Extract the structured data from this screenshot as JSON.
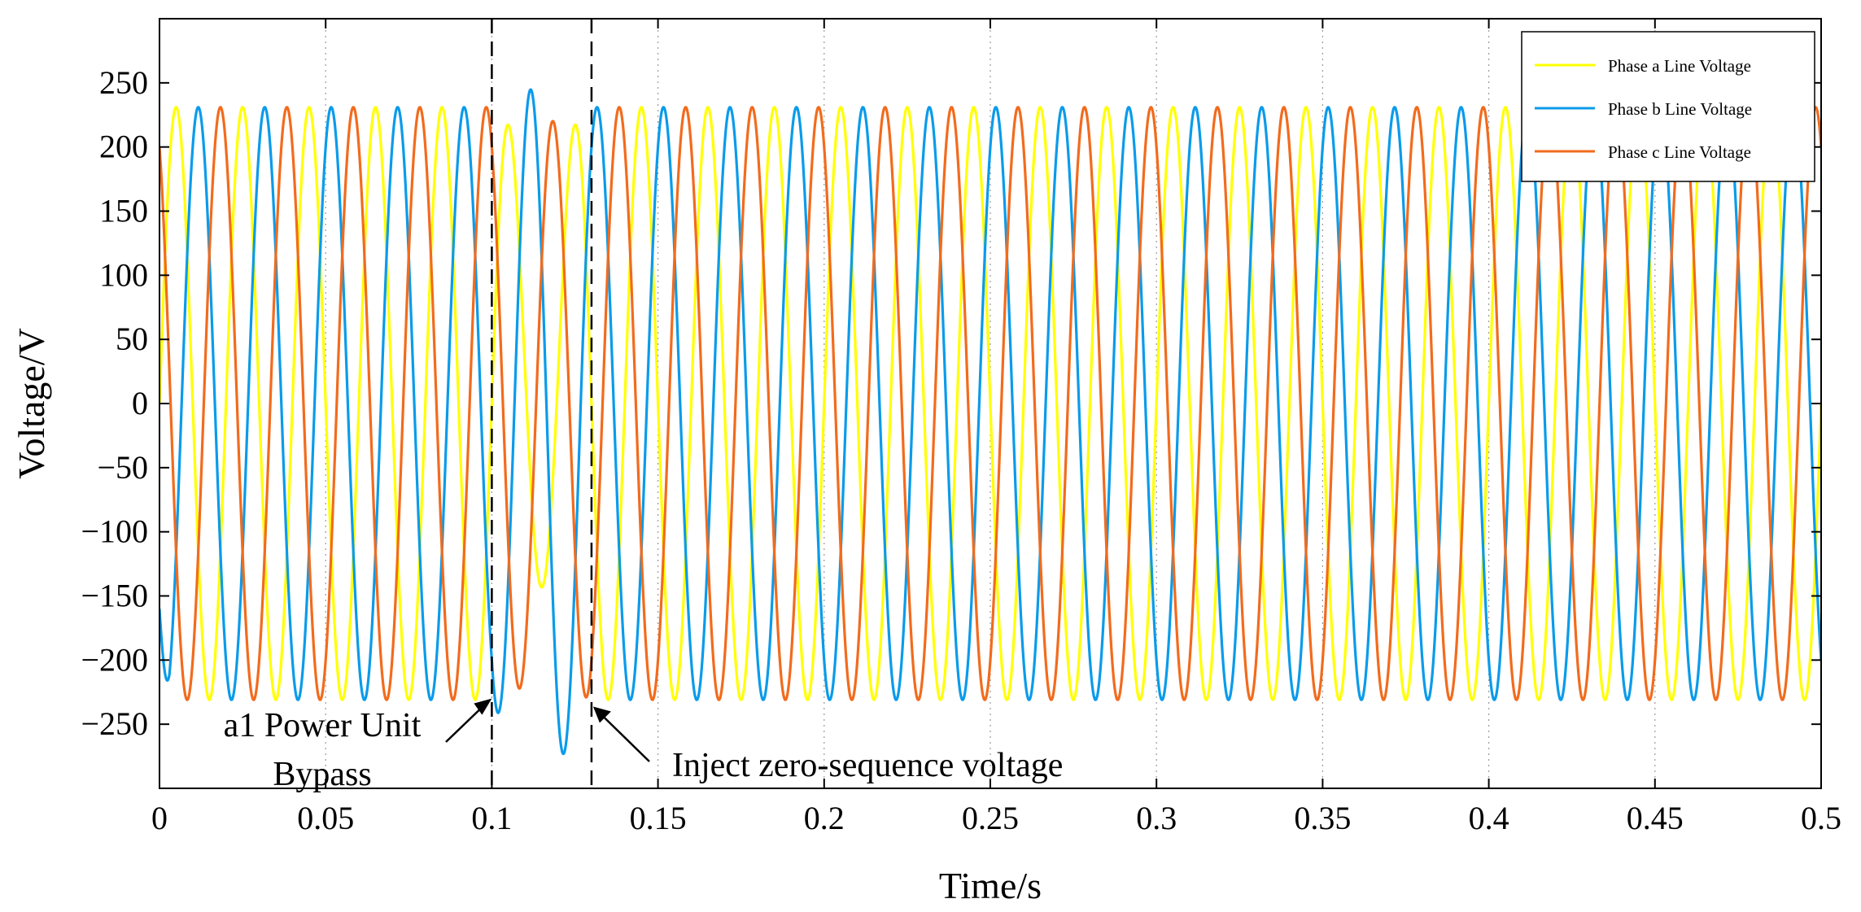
{
  "chart_data": {
    "type": "line",
    "title": "",
    "xlabel": "Time/s",
    "ylabel": "Voltage/V",
    "xlim": [
      0,
      0.5
    ],
    "ylim": [
      -300,
      300
    ],
    "x_ticks": [
      0,
      0.05,
      0.1,
      0.15,
      0.2,
      0.25,
      0.3,
      0.35,
      0.4,
      0.45,
      0.5
    ],
    "x_tick_labels": [
      "0",
      "0.05",
      "0.1",
      "0.15",
      "0.2",
      "0.25",
      "0.3",
      "0.35",
      "0.4",
      "0.45",
      "0.5"
    ],
    "y_ticks": [
      250,
      200,
      150,
      100,
      50,
      0,
      -50,
      -100,
      -150,
      -200,
      -250
    ],
    "y_tick_labels": [
      "250",
      "200",
      "150",
      "100",
      "50",
      "0",
      "−50",
      "−100",
      "−150",
      "−200",
      "−250"
    ],
    "grid": "x-dotted",
    "legend_position": "top-right",
    "series": [
      {
        "name": "Phase a Line Voltage",
        "color": "#FFFF00",
        "frequency_hz": 50,
        "amplitude_v": 231,
        "phase_deg": 0
      },
      {
        "name": "Phase b Line Voltage",
        "color": "#0A9BEA",
        "frequency_hz": 50,
        "amplitude_v": 231,
        "phase_deg": -120
      },
      {
        "name": "Phase c Line Voltage",
        "color": "#F26B1D",
        "frequency_hz": 50,
        "amplitude_v": 231,
        "phase_deg": 120
      }
    ],
    "events": [
      {
        "time": 0.1,
        "label_lines": [
          "a1 Power Unit",
          "Bypass"
        ]
      },
      {
        "time": 0.13,
        "label_lines": [
          "Inject zero-sequence voltage"
        ]
      }
    ]
  }
}
